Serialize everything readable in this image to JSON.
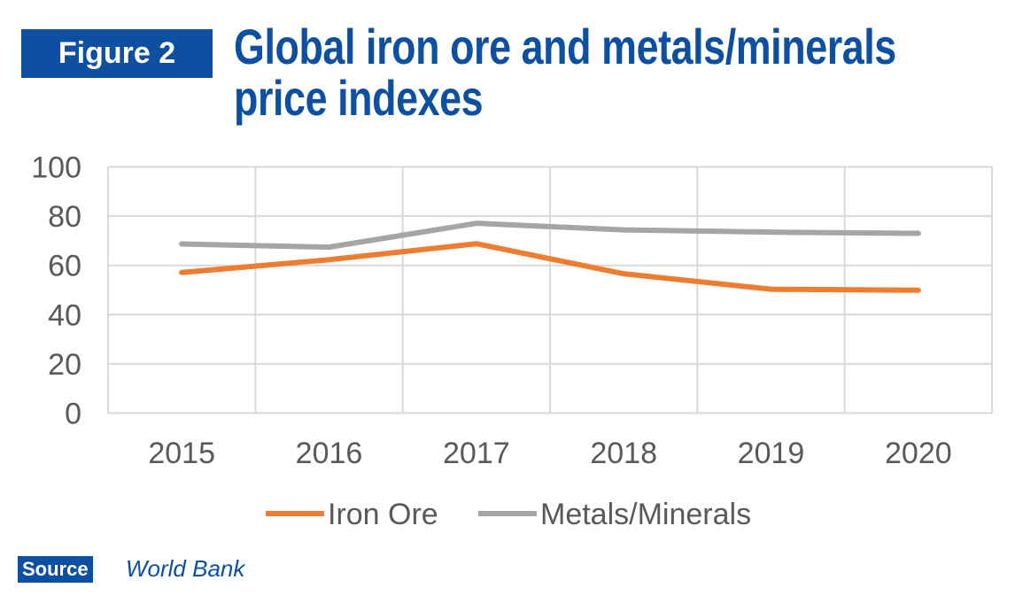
{
  "figure_label": "Figure 2",
  "title_lines": [
    "Global iron ore and metals/minerals",
    "price indexes"
  ],
  "source": {
    "label": "Source",
    "text": "World Bank"
  },
  "chart_data": {
    "type": "line",
    "title": "Global iron ore and metals/minerals price indexes",
    "categories": [
      "2015",
      "2016",
      "2017",
      "2018",
      "2019",
      "2020"
    ],
    "yticks": [
      "0",
      "20",
      "40",
      "60",
      "80",
      "100"
    ],
    "ylim": [
      0,
      100
    ],
    "grid": true,
    "legend_placement": "bottom",
    "series": [
      {
        "name": "Iron Ore",
        "color": "#ed7d31",
        "values": [
          57.1,
          62.3,
          68.8,
          56.6,
          50.3,
          49.9
        ]
      },
      {
        "name": "Metals/Minerals",
        "color": "#a5a5a5",
        "values": [
          68.7,
          67.4,
          77.1,
          74.4,
          73.5,
          73.0
        ]
      }
    ]
  }
}
